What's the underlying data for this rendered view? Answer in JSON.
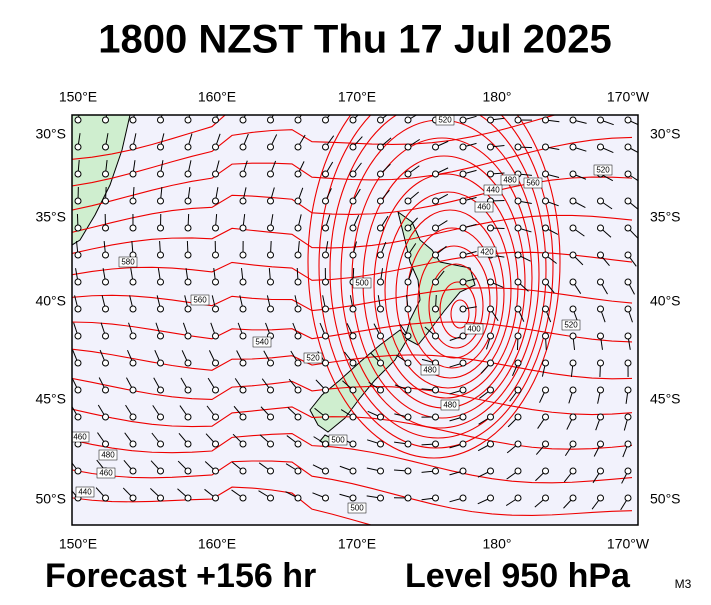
{
  "title": "1800 NZST Thu 17 Jul 2025",
  "map": {
    "lon_labels": [
      "150°E",
      "160°E",
      "170°E",
      "180°",
      "170°W"
    ],
    "lat_labels": [
      "30°S",
      "35°S",
      "40°S",
      "45°S",
      "50°S"
    ],
    "contour_labels": [
      520,
      480,
      560,
      520,
      460,
      440,
      420,
      400,
      480,
      520,
      500,
      580,
      560,
      540,
      520,
      480,
      500,
      460,
      480,
      440,
      460,
      500
    ]
  },
  "footer": {
    "forecast": "Forecast +156 hr",
    "level": "Level 950 hPa",
    "model": "M3"
  }
}
